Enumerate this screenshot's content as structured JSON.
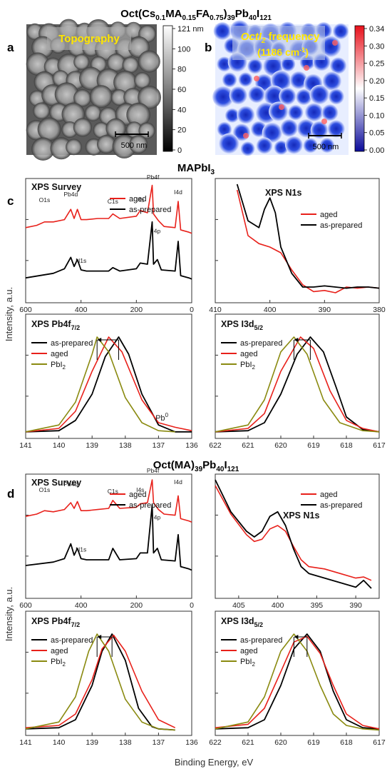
{
  "titles": {
    "top": {
      "pre": "Oct(Cs",
      "s1": "0.1",
      "t2": "MA",
      "s2": "0.15",
      "t3": "FA",
      "s3": "0.75",
      "t4": ")",
      "s4": "39",
      "t5": "Pb",
      "s5": "40",
      "t6": "I",
      "s6": "121"
    },
    "mid": {
      "pre": "MAPbI",
      "s1": "3"
    },
    "bot": {
      "pre": "Oct(MA)",
      "s1": "39",
      "t2": "Pb",
      "s2": "40",
      "t3": "I",
      "s3": "121"
    }
  },
  "panel_letters": {
    "a": "a",
    "b": "b",
    "c": "c",
    "d": "d"
  },
  "afm": {
    "topo_label": "Topography",
    "topo_scalebar": "500 nm",
    "topo_colorbar_ticks": [
      "121 nm",
      "100",
      "80",
      "60",
      "40",
      "20",
      "0"
    ],
    "freq_label_a": "OctI",
    "freq_label_sub": "2",
    "freq_label_b": " frequency",
    "freq_label_c": "(1186 cm",
    "freq_label_sup": "-1",
    "freq_label_d": ")",
    "freq_scalebar": "500 nm",
    "freq_colorbar_ticks": [
      "0.34",
      "0.30",
      "0.25",
      "0.20",
      "0.15",
      "0.10",
      "0.05",
      "0.00"
    ]
  },
  "common": {
    "ylabel": "Intensity, a.u.",
    "xlabel": "Binding Energy, eV",
    "legend": {
      "aged": "aged",
      "prep": "as-prepared",
      "pbi2": "PbI",
      "pbi2_sub": "2"
    },
    "colors": {
      "aged": "#e8201a",
      "prep": "#000000",
      "pbi2": "#8a8a10"
    }
  },
  "chart_data": [
    {
      "id": "c_survey",
      "type": "line",
      "title": "XPS Survey",
      "xlim": [
        600,
        0
      ],
      "xticks": [
        600,
        400,
        200,
        0
      ],
      "peak_labels": [
        "O1s",
        "Pb4d",
        "C1s",
        "I4s",
        "Pb4f",
        "I4d",
        "I4p",
        "N1s"
      ],
      "series": [
        {
          "name": "aged",
          "x": [
            600,
            560,
            532,
            500,
            460,
            437,
            425,
            413,
            400,
            380,
            340,
            300,
            285,
            260,
            200,
            186,
            160,
            143,
            138,
            120,
            100,
            60,
            49,
            40,
            10,
            0
          ],
          "y": [
            0.62,
            0.64,
            0.67,
            0.67,
            0.69,
            0.78,
            0.7,
            0.78,
            0.69,
            0.69,
            0.7,
            0.7,
            0.74,
            0.7,
            0.72,
            0.77,
            0.75,
            0.99,
            0.74,
            0.68,
            0.63,
            0.62,
            0.85,
            0.6,
            0.58,
            0.57
          ]
        },
        {
          "name": "as-prepared",
          "x": [
            600,
            500,
            460,
            437,
            425,
            413,
            400,
            380,
            340,
            300,
            285,
            260,
            200,
            186,
            160,
            143,
            138,
            124,
            110,
            60,
            49,
            40,
            10,
            0
          ],
          "y": [
            0.18,
            0.22,
            0.26,
            0.36,
            0.28,
            0.34,
            0.25,
            0.24,
            0.24,
            0.24,
            0.27,
            0.24,
            0.26,
            0.31,
            0.3,
            0.67,
            0.3,
            0.34,
            0.25,
            0.24,
            0.5,
            0.2,
            0.18,
            0.17
          ]
        }
      ]
    },
    {
      "id": "c_n1s",
      "type": "line",
      "title": "XPS  N1s",
      "xlim": [
        410,
        380
      ],
      "xticks": [
        410,
        400,
        390,
        380
      ],
      "series": [
        {
          "name": "aged",
          "x": [
            406,
            404,
            402,
            400,
            398,
            396,
            394,
            392,
            390,
            388,
            386,
            384,
            382,
            380
          ],
          "y": [
            0.95,
            0.55,
            0.48,
            0.45,
            0.4,
            0.25,
            0.12,
            0.06,
            0.07,
            0.05,
            0.1,
            0.09,
            0.1,
            0.09
          ]
        },
        {
          "name": "as-prepared",
          "x": [
            406,
            404,
            402,
            401,
            400,
            399,
            398,
            396,
            394,
            392,
            390,
            388,
            386,
            384,
            382,
            380
          ],
          "y": [
            1.0,
            0.68,
            0.62,
            0.78,
            0.88,
            0.75,
            0.45,
            0.22,
            0.1,
            0.1,
            0.11,
            0.1,
            0.09,
            0.1,
            0.1,
            0.09
          ]
        }
      ]
    },
    {
      "id": "c_pb4f",
      "type": "line",
      "title_a": "XPS Pb4f",
      "title_sub": "7/2",
      "xlim": [
        141,
        136
      ],
      "xticks": [
        141,
        140,
        139,
        138,
        137,
        136
      ],
      "annotation": "Pb",
      "annotation_sup": "0",
      "series": [
        {
          "name": "as-prepared",
          "x": [
            141,
            140,
            139.5,
            139,
            138.6,
            138.2,
            137.9,
            137.5,
            137,
            136.5,
            136
          ],
          "y": [
            0.02,
            0.03,
            0.12,
            0.35,
            0.68,
            0.85,
            0.7,
            0.35,
            0.08,
            0.02,
            0.02
          ]
        },
        {
          "name": "aged",
          "x": [
            141,
            140,
            139.5,
            139,
            138.5,
            138.1,
            137.5,
            137,
            136.5,
            136
          ],
          "y": [
            0.02,
            0.05,
            0.2,
            0.55,
            0.85,
            0.72,
            0.3,
            0.1,
            0.06,
            0.03
          ]
        },
        {
          "name": "PbI2",
          "x": [
            141,
            140,
            139.5,
            139,
            138.85,
            138.5,
            138,
            137.5,
            137,
            136.5
          ],
          "y": [
            0.02,
            0.08,
            0.28,
            0.7,
            0.85,
            0.72,
            0.32,
            0.1,
            0.03,
            0.02
          ]
        }
      ]
    },
    {
      "id": "c_i3d",
      "type": "line",
      "title_a": "XPS I3d",
      "title_sub": "5/2",
      "xlim": [
        622,
        617
      ],
      "xticks": [
        622,
        621,
        620,
        619,
        618,
        617
      ],
      "series": [
        {
          "name": "as-prepared",
          "x": [
            622,
            621,
            620.5,
            620,
            619.5,
            619.1,
            618.7,
            618.3,
            618,
            617.5,
            617
          ],
          "y": [
            0.02,
            0.03,
            0.1,
            0.35,
            0.7,
            0.85,
            0.72,
            0.4,
            0.15,
            0.04,
            0.02
          ]
        },
        {
          "name": "aged",
          "x": [
            622,
            621,
            620.5,
            620,
            619.4,
            619,
            618.5,
            618,
            617.5,
            617
          ],
          "y": [
            0.02,
            0.05,
            0.18,
            0.55,
            0.85,
            0.75,
            0.38,
            0.12,
            0.05,
            0.02
          ]
        },
        {
          "name": "PbI2",
          "x": [
            622,
            621,
            620.5,
            620,
            619.6,
            619.2,
            618.7,
            618.2,
            617.5,
            617
          ],
          "y": [
            0.02,
            0.08,
            0.3,
            0.72,
            0.85,
            0.7,
            0.3,
            0.1,
            0.03,
            0.02
          ]
        }
      ]
    },
    {
      "id": "d_survey",
      "type": "line",
      "title": "XPS Survey",
      "xlim": [
        600,
        0
      ],
      "xticks": [
        600,
        400,
        200,
        0
      ],
      "peak_labels": [
        "O1s",
        "Pb4d",
        "C1s",
        "I4s",
        "Pb4f",
        "I4d",
        "I4p",
        "N1s"
      ],
      "series": [
        {
          "name": "aged",
          "x": [
            600,
            560,
            532,
            500,
            460,
            437,
            425,
            413,
            400,
            380,
            340,
            300,
            285,
            260,
            200,
            186,
            160,
            143,
            138,
            120,
            100,
            60,
            49,
            40,
            10,
            0
          ],
          "y": [
            0.68,
            0.7,
            0.73,
            0.72,
            0.74,
            0.8,
            0.75,
            0.81,
            0.73,
            0.73,
            0.74,
            0.75,
            0.82,
            0.75,
            0.76,
            0.79,
            0.8,
            1.0,
            0.8,
            0.74,
            0.7,
            0.69,
            0.86,
            0.66,
            0.64,
            0.63
          ]
        },
        {
          "name": "as-prepared",
          "x": [
            600,
            500,
            460,
            437,
            425,
            413,
            400,
            380,
            340,
            300,
            285,
            260,
            200,
            186,
            160,
            143,
            138,
            124,
            110,
            60,
            49,
            40,
            10,
            0
          ],
          "y": [
            0.25,
            0.28,
            0.31,
            0.44,
            0.34,
            0.4,
            0.31,
            0.3,
            0.3,
            0.3,
            0.4,
            0.3,
            0.31,
            0.36,
            0.36,
            0.78,
            0.36,
            0.4,
            0.3,
            0.29,
            0.52,
            0.24,
            0.22,
            0.21
          ]
        }
      ]
    },
    {
      "id": "d_n1s",
      "type": "line",
      "title": "XPS  N1s",
      "xlim": [
        408,
        387
      ],
      "xticks": [
        405,
        400,
        395,
        390
      ],
      "series": [
        {
          "name": "aged",
          "x": [
            408,
            406,
            404,
            403,
            402,
            401,
            400,
            399,
            398,
            397,
            396,
            394,
            392,
            390,
            389,
            388
          ],
          "y": [
            0.95,
            0.7,
            0.52,
            0.46,
            0.48,
            0.57,
            0.6,
            0.55,
            0.42,
            0.3,
            0.24,
            0.22,
            0.18,
            0.14,
            0.15,
            0.12
          ]
        },
        {
          "name": "as-prepared",
          "x": [
            408,
            406,
            404,
            403,
            402,
            401,
            400,
            399,
            398,
            397,
            396,
            394,
            392,
            390,
            389,
            388
          ],
          "y": [
            1.0,
            0.72,
            0.55,
            0.5,
            0.55,
            0.68,
            0.72,
            0.6,
            0.4,
            0.24,
            0.18,
            0.14,
            0.1,
            0.06,
            0.12,
            0.05
          ]
        }
      ]
    },
    {
      "id": "d_pb4f",
      "type": "line",
      "title_a": "XPS Pb4f",
      "title_sub": "7/2",
      "xlim": [
        141,
        136
      ],
      "xticks": [
        141,
        140,
        139,
        138,
        137,
        136
      ],
      "series": [
        {
          "name": "as-prepared",
          "x": [
            141,
            140,
            139.5,
            139,
            138.7,
            138.4,
            138,
            137.6,
            137.2,
            137,
            136.5
          ],
          "y": [
            0.02,
            0.03,
            0.1,
            0.4,
            0.7,
            0.85,
            0.62,
            0.2,
            0.04,
            0.02,
            0.01
          ]
        },
        {
          "name": "aged",
          "x": [
            141,
            140,
            139.5,
            139,
            138.7,
            138.35,
            138,
            137.5,
            137,
            136.5
          ],
          "y": [
            0.03,
            0.05,
            0.15,
            0.45,
            0.72,
            0.84,
            0.7,
            0.35,
            0.1,
            0.03
          ]
        },
        {
          "name": "PbI2",
          "x": [
            141,
            140,
            139.5,
            139.1,
            138.85,
            138.5,
            138,
            137.5,
            137,
            136.5
          ],
          "y": [
            0.02,
            0.08,
            0.3,
            0.7,
            0.85,
            0.7,
            0.28,
            0.08,
            0.02,
            0.01
          ]
        }
      ]
    },
    {
      "id": "d_i3d",
      "type": "line",
      "title_a": "XPS I3d",
      "title_sub": "5/2",
      "xlim": [
        622,
        617
      ],
      "xticks": [
        622,
        621,
        620,
        619,
        618,
        617
      ],
      "series": [
        {
          "name": "as-prepared",
          "x": [
            622,
            621,
            620.5,
            620,
            619.6,
            619.2,
            618.8,
            618.4,
            618,
            617.5,
            617
          ],
          "y": [
            0.02,
            0.03,
            0.1,
            0.4,
            0.72,
            0.85,
            0.7,
            0.35,
            0.1,
            0.03,
            0.02
          ]
        },
        {
          "name": "aged",
          "x": [
            622,
            621,
            620.5,
            620,
            619.6,
            619.2,
            618.8,
            618.4,
            618,
            617.5,
            617
          ],
          "y": [
            0.03,
            0.06,
            0.2,
            0.52,
            0.78,
            0.83,
            0.68,
            0.4,
            0.15,
            0.05,
            0.02
          ]
        },
        {
          "name": "PbI2",
          "x": [
            622,
            621,
            620.5,
            620,
            619.6,
            619.2,
            618.8,
            618.4,
            618,
            617.5,
            617
          ],
          "y": [
            0.02,
            0.08,
            0.3,
            0.7,
            0.85,
            0.7,
            0.4,
            0.15,
            0.05,
            0.02,
            0.01
          ]
        }
      ]
    }
  ]
}
